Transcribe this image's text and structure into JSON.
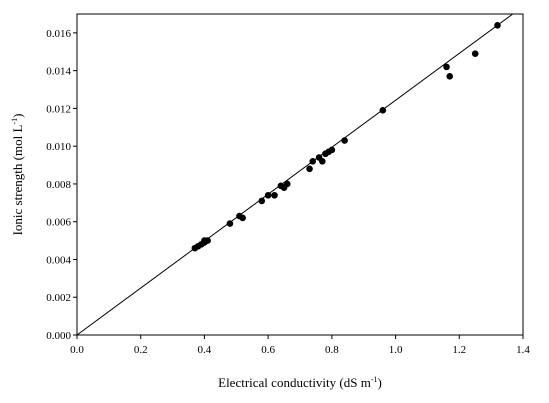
{
  "chart_data": {
    "type": "scatter",
    "title": "",
    "xlabel": "Electrical conductivity (dS m",
    "xlabel_sup": "-1",
    "xlabel_end": ")",
    "ylabel": "Ionic strength (mol L",
    "ylabel_sup": "-1",
    "ylabel_end": ")",
    "xlim": [
      0.0,
      1.4
    ],
    "ylim": [
      0.0,
      0.017
    ],
    "x_ticks": [
      "0.0",
      "0.2",
      "0.4",
      "0.6",
      "0.8",
      "1.0",
      "1.2",
      "1.4"
    ],
    "y_ticks": [
      "0.000",
      "0.002",
      "0.004",
      "0.006",
      "0.008",
      "0.010",
      "0.012",
      "0.014",
      "0.016"
    ],
    "grid": false,
    "legend": "none",
    "marker_color": "#000000",
    "series": [
      {
        "points": [
          [
            0.37,
            0.0046
          ],
          [
            0.38,
            0.0047
          ],
          [
            0.39,
            0.0048
          ],
          [
            0.4,
            0.0049
          ],
          [
            0.4,
            0.005
          ],
          [
            0.41,
            0.005
          ],
          [
            0.48,
            0.0059
          ],
          [
            0.51,
            0.0063
          ],
          [
            0.52,
            0.0062
          ],
          [
            0.58,
            0.0071
          ],
          [
            0.6,
            0.0074
          ],
          [
            0.62,
            0.0074
          ],
          [
            0.64,
            0.0079
          ],
          [
            0.65,
            0.0078
          ],
          [
            0.66,
            0.008
          ],
          [
            0.73,
            0.0088
          ],
          [
            0.74,
            0.0092
          ],
          [
            0.76,
            0.0094
          ],
          [
            0.77,
            0.0092
          ],
          [
            0.78,
            0.0096
          ],
          [
            0.79,
            0.0097
          ],
          [
            0.8,
            0.0098
          ],
          [
            0.84,
            0.0103
          ],
          [
            0.96,
            0.0119
          ],
          [
            1.16,
            0.0142
          ],
          [
            1.17,
            0.0137
          ],
          [
            1.25,
            0.0149
          ],
          [
            1.32,
            0.0164
          ]
        ]
      }
    ],
    "fit_line": {
      "type": "linear",
      "x": [
        0.0,
        1.4
      ],
      "y": [
        0.0,
        0.0174
      ]
    }
  }
}
